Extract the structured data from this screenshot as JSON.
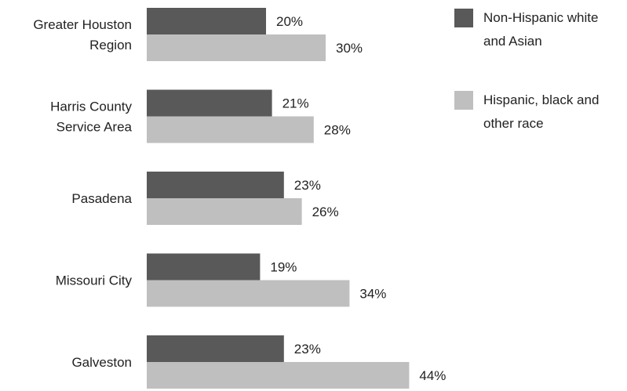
{
  "chart_data": {
    "type": "bar",
    "orientation": "horizontal",
    "categories": [
      "Greater Houston Region",
      "Harris County Service Area",
      "Pasadena",
      "Missouri City",
      "Galveston"
    ],
    "category_label_lines": [
      [
        "Greater Houston",
        "Region"
      ],
      [
        "Harris County",
        "Service Area"
      ],
      [
        "Pasadena"
      ],
      [
        "Missouri City"
      ],
      [
        "Galveston"
      ]
    ],
    "series": [
      {
        "name": "Non-Hispanic white and Asian",
        "name_lines": [
          "Non-Hispanic white",
          "and Asian"
        ],
        "color": "#595959",
        "values": [
          20,
          21,
          23,
          19,
          23
        ],
        "value_labels": [
          "20%",
          "21%",
          "23%",
          "19%",
          "23%"
        ]
      },
      {
        "name": "Hispanic, black and other race",
        "name_lines": [
          "Hispanic, black and",
          "other race"
        ],
        "color": "#bfbfbf",
        "values": [
          30,
          28,
          26,
          34,
          44
        ],
        "value_labels": [
          "30%",
          "28%",
          "26%",
          "34%",
          "44%"
        ]
      }
    ],
    "xlim": [
      0,
      50
    ],
    "unit": "%",
    "grid": false,
    "legend": "top-right"
  }
}
